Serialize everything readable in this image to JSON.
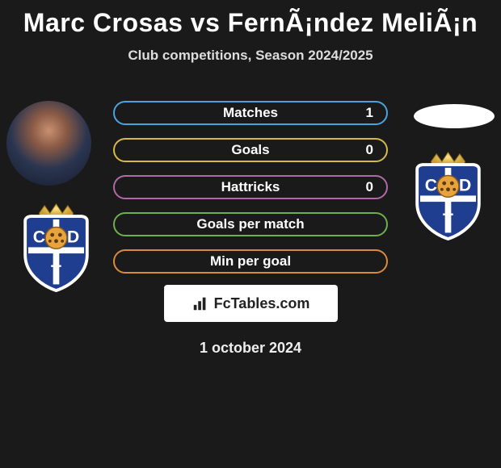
{
  "title": "Marc Crosas vs FernÃ¡ndez MeliÃ¡n",
  "subtitle": "Club competitions, Season 2024/2025",
  "date": "1 october 2024",
  "brand": "FcTables.com",
  "crest": {
    "shield_fill": "#1f3e8f",
    "shield_stroke": "#ffffff",
    "ball_fill": "#e8a33c",
    "c_letter": "C",
    "d_letter": "D",
    "t_letter": "T"
  },
  "bars": [
    {
      "label": "Matches",
      "value": "1",
      "color": "#4aa3e0"
    },
    {
      "label": "Goals",
      "value": "0",
      "color": "#d6b948"
    },
    {
      "label": "Hattricks",
      "value": "0",
      "color": "#b06aa6"
    },
    {
      "label": "Goals per match",
      "value": "",
      "color": "#6fae4d"
    },
    {
      "label": "Min per goal",
      "value": "",
      "color": "#d98a3e"
    }
  ]
}
